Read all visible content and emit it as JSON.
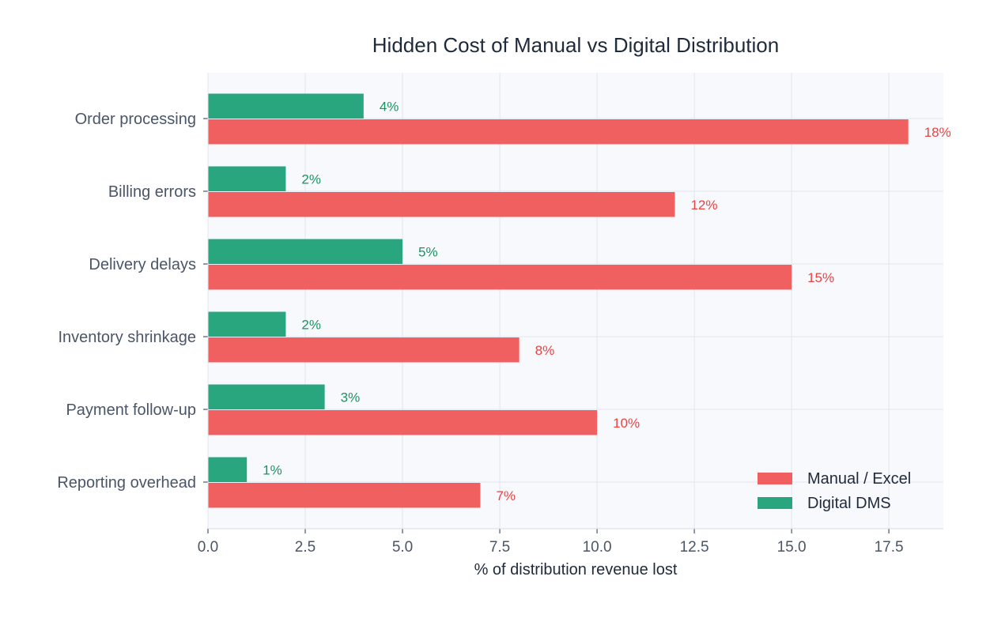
{
  "chart_data": {
    "type": "bar",
    "orientation": "horizontal",
    "title": "Hidden Cost of Manual vs Digital Distribution",
    "xlabel": "% of distribution revenue lost",
    "ylabel": "",
    "categories": [
      "Order processing",
      "Billing errors",
      "Delivery delays",
      "Inventory shrinkage",
      "Payment follow-up",
      "Reporting overhead"
    ],
    "series": [
      {
        "name": "Manual / Excel",
        "color": "#f06060",
        "label_color": "#e84444",
        "values": [
          18,
          12,
          15,
          8,
          10,
          7
        ],
        "labels": [
          "18%",
          "12%",
          "15%",
          "8%",
          "10%",
          "7%"
        ]
      },
      {
        "name": "Digital DMS",
        "color": "#2aa67e",
        "label_color": "#17955f",
        "values": [
          4,
          2,
          5,
          2,
          3,
          1
        ],
        "labels": [
          "4%",
          "2%",
          "5%",
          "2%",
          "3%",
          "1%"
        ]
      }
    ],
    "xlim": [
      0,
      18.9
    ],
    "xticks": [
      0,
      2.5,
      5,
      7.5,
      10,
      12.5,
      15,
      17.5
    ],
    "xtick_labels": [
      "0.0",
      "2.5",
      "5.0",
      "7.5",
      "10.0",
      "12.5",
      "15.0",
      "17.5"
    ],
    "grid": true,
    "legend_position": "bottom-right",
    "plot_background": "#f7f9fc"
  }
}
